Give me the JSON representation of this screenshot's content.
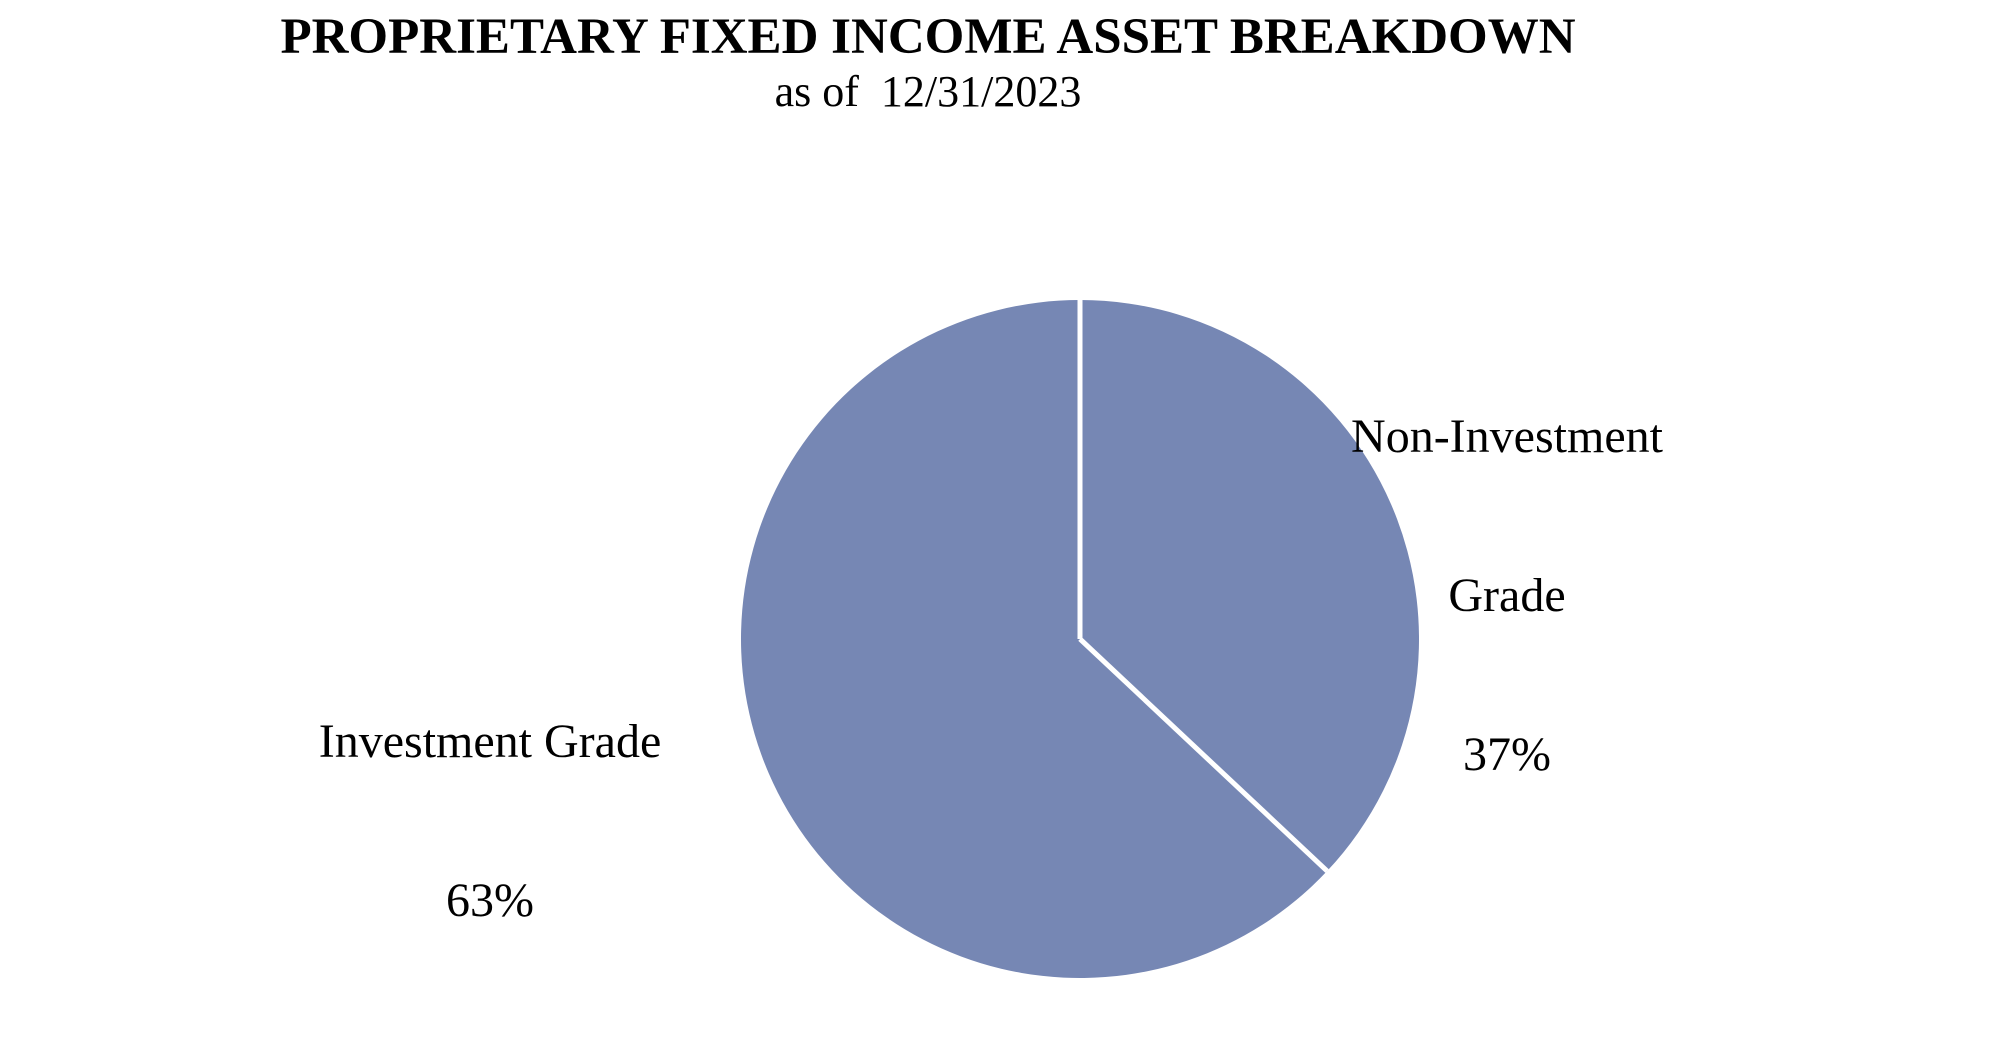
{
  "chart_data": {
    "type": "pie",
    "title": "PROPRIETARY FIXED INCOME ASSET BREAKDOWN",
    "subtitle": "as of  12/31/2023",
    "categories": [
      "Non-Investment Grade",
      "Investment Grade"
    ],
    "values": [
      37,
      63
    ],
    "unit": "percent",
    "start_angle_deg": 0,
    "direction": "clockwise",
    "slice_colors": [
      "#7687B4",
      "#7687B4"
    ],
    "divider_color": "#FFFFFF",
    "divider_width": 5,
    "legend": "none",
    "background": "#FFFFFF",
    "label_style": "outside-text"
  },
  "labels": {
    "non_investment": {
      "line1": "Non-Investment",
      "line2": "Grade",
      "line3": "37%"
    },
    "investment": {
      "line1": "Investment Grade",
      "line2": "63%"
    }
  }
}
